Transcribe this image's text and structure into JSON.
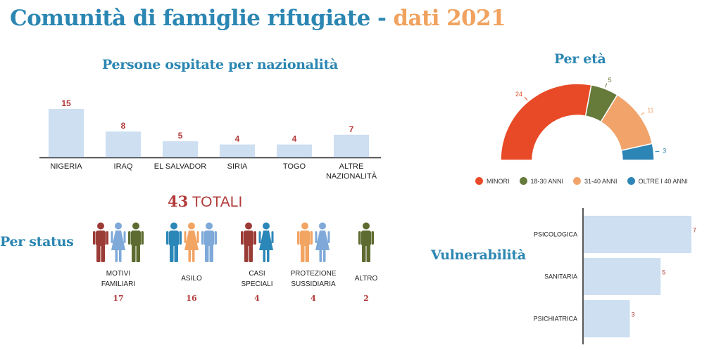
{
  "header": {
    "title_main": "Comunità di famiglie rifugiate - ",
    "title_year": "dati 2021"
  },
  "colors": {
    "title_blue": "#2b86b2",
    "title_orange": "#f0a25e",
    "bar_fill": "#cddff1",
    "value_red": "#b23a3a",
    "person_maroon": "#9b3b36",
    "person_lightblue": "#7fa9d8",
    "person_olive": "#5e6b30",
    "person_blue": "#2b87b8",
    "person_peach": "#f2a463"
  },
  "nationality": {
    "title": "Persone ospitate per nazionalità"
  },
  "age": {
    "title": "Per età"
  },
  "status": {
    "title": "Per status"
  },
  "vulnerability": {
    "title": "Vulnerabilità"
  },
  "total": {
    "number": "43",
    "label": "TOTALI"
  },
  "chart_data": [
    {
      "type": "bar",
      "title": "Persone ospitate per nazionalità",
      "categories": [
        "NIGERIA",
        "IRAQ",
        "EL SALVADOR",
        "SIRIA",
        "TOGO",
        "ALTRE NAZIONALITÀ"
      ],
      "values": [
        15,
        8,
        5,
        4,
        4,
        7
      ],
      "ylim": [
        0,
        17
      ],
      "grid": false
    },
    {
      "type": "pie",
      "title": "Per età",
      "categories": [
        "MINORI",
        "18-30 ANNI",
        "31-40 ANNI",
        "OLTRE I 40 ANNI"
      ],
      "values": [
        24,
        5,
        11,
        3
      ],
      "colors": [
        "#e84a27",
        "#667a3a",
        "#f2a36a",
        "#2d85b5"
      ],
      "legend": "bottom"
    },
    {
      "type": "bar",
      "title": "Vulnerabilità",
      "orientation": "horizontal",
      "categories": [
        "PSICOLOGICA",
        "SANITARIA",
        "PSICHIATRICA"
      ],
      "values": [
        7,
        5,
        3
      ],
      "xlim": [
        0,
        7
      ],
      "grid": false
    },
    {
      "type": "table",
      "title": "Per status",
      "categories": [
        "MOTIVI FAMILIARI",
        "ASILO",
        "CASI SPECIALI",
        "PROTEZIONE SUSSIDIARIA",
        "ALTRO"
      ],
      "values": [
        17,
        16,
        4,
        4,
        2
      ]
    }
  ],
  "status_groups": [
    {
      "label_lines": [
        "MOTIVI",
        "FAMILIARI"
      ],
      "value": "17",
      "icons": [
        "person-man-maroon-icon",
        "person-woman-lightblue-icon",
        "person-man-olive-icon"
      ]
    },
    {
      "label_lines": [
        "ASILO"
      ],
      "value": "16",
      "icons": [
        "person-man-blue-icon",
        "person-woman-peach-icon",
        "person-man-lightblue-icon"
      ]
    },
    {
      "label_lines": [
        "CASI",
        "SPECIALI"
      ],
      "value": "4",
      "icons": [
        "person-man-maroon-icon",
        "person-woman-blue-icon"
      ]
    },
    {
      "label_lines": [
        "PROTEZIONE",
        "SUSSIDIARIA"
      ],
      "value": "4",
      "icons": [
        "person-man-peach-icon",
        "person-woman-lightblue-icon"
      ]
    },
    {
      "label_lines": [
        "ALTRO"
      ],
      "value": "2",
      "icons": [
        "person-man-olive-icon"
      ]
    }
  ]
}
